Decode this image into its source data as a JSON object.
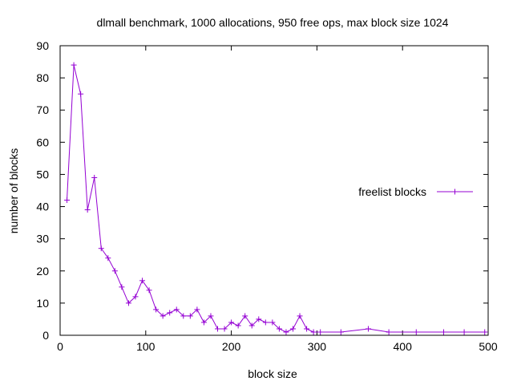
{
  "chart_data": {
    "type": "line",
    "title": "dlmall benchmark, 1000 allocations, 950 free ops, max block size 1024",
    "xlabel": "block size",
    "ylabel": "number of blocks",
    "xlim": [
      0,
      500
    ],
    "ylim": [
      0,
      90
    ],
    "x_ticks": [
      0,
      100,
      200,
      300,
      400,
      500
    ],
    "y_ticks": [
      0,
      10,
      20,
      30,
      40,
      50,
      60,
      70,
      80,
      90
    ],
    "grid": false,
    "legend_position": "right",
    "series": [
      {
        "name": "freelist blocks",
        "color": "#9400D3",
        "marker": "plus",
        "x": [
          8,
          16,
          24,
          32,
          40,
          48,
          56,
          64,
          72,
          80,
          88,
          96,
          104,
          112,
          120,
          128,
          136,
          144,
          152,
          160,
          168,
          176,
          184,
          192,
          200,
          208,
          216,
          224,
          232,
          240,
          248,
          256,
          264,
          272,
          280,
          288,
          296,
          304,
          328,
          360,
          384,
          416,
          448,
          472,
          496
        ],
        "values": [
          42,
          84,
          75,
          39,
          49,
          27,
          24,
          20,
          15,
          10,
          12,
          17,
          14,
          8,
          6,
          7,
          8,
          6,
          6,
          8,
          4,
          6,
          2,
          2,
          4,
          3,
          6,
          3,
          5,
          4,
          4,
          2,
          1,
          2,
          6,
          2,
          1,
          1,
          1,
          2,
          1,
          1,
          1,
          1,
          1
        ]
      }
    ]
  }
}
